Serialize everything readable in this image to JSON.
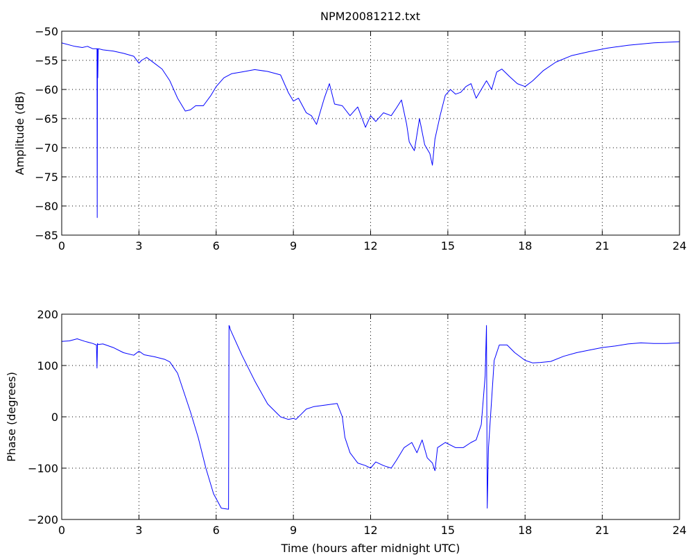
{
  "figure": {
    "title": "NPM20081212.txt"
  },
  "chart_data": [
    {
      "type": "line",
      "title": "NPM20081212.txt",
      "xlabel": "",
      "ylabel": "Amplitude (dB)",
      "xlim": [
        0,
        24
      ],
      "ylim": [
        -85,
        -50
      ],
      "xticks": [
        0,
        3,
        6,
        9,
        12,
        15,
        18,
        21,
        24
      ],
      "yticks": [
        -85,
        -80,
        -75,
        -70,
        -65,
        -60,
        -55,
        -50
      ],
      "grid": true,
      "series": [
        {
          "color": "#0000ff",
          "x": [
            0,
            0.5,
            0.8,
            1.0,
            1.2,
            1.37,
            1.38,
            1.39,
            1.4,
            1.42,
            1.6,
            2.0,
            2.4,
            2.8,
            3.0,
            3.1,
            3.3,
            3.6,
            3.9,
            4.2,
            4.5,
            4.8,
            5.0,
            5.2,
            5.5,
            5.8,
            6.0,
            6.3,
            6.6,
            7.0,
            7.5,
            8.0,
            8.5,
            8.8,
            9.0,
            9.2,
            9.5,
            9.7,
            9.9,
            10.2,
            10.4,
            10.6,
            10.9,
            11.2,
            11.5,
            11.8,
            12.0,
            12.2,
            12.5,
            12.8,
            13.0,
            13.2,
            13.4,
            13.5,
            13.7,
            13.9,
            14.1,
            14.3,
            14.4,
            14.5,
            14.7,
            14.9,
            15.1,
            15.3,
            15.5,
            15.7,
            15.9,
            16.1,
            16.3,
            16.5,
            16.7,
            16.9,
            17.1,
            17.4,
            17.7,
            18.0,
            18.3,
            18.7,
            19.2,
            19.8,
            20.5,
            21.2,
            22.0,
            23.0,
            24.0
          ],
          "y": [
            -52.0,
            -52.6,
            -52.8,
            -52.6,
            -53.0,
            -53.0,
            -82.0,
            -53.0,
            -58.0,
            -53.0,
            -53.2,
            -53.4,
            -53.8,
            -54.3,
            -55.5,
            -55.0,
            -54.5,
            -55.5,
            -56.5,
            -58.5,
            -61.5,
            -63.7,
            -63.5,
            -62.8,
            -62.8,
            -61.0,
            -59.5,
            -58.0,
            -57.3,
            -57.0,
            -56.6,
            -56.9,
            -57.5,
            -60.5,
            -62.0,
            -61.5,
            -64.0,
            -64.5,
            -66.0,
            -61.5,
            -59.0,
            -62.5,
            -62.8,
            -64.5,
            -63.0,
            -66.5,
            -64.5,
            -65.5,
            -64.0,
            -64.5,
            -63.2,
            -61.8,
            -66.0,
            -69.0,
            -70.5,
            -65.0,
            -69.5,
            -71.0,
            -73.0,
            -68.5,
            -64.5,
            -61.0,
            -60.0,
            -60.8,
            -60.5,
            -59.5,
            -59.0,
            -61.5,
            -60.0,
            -58.5,
            -60.0,
            -57.0,
            -56.5,
            -57.8,
            -59.0,
            -59.5,
            -58.5,
            -56.8,
            -55.3,
            -54.2,
            -53.5,
            -52.9,
            -52.4,
            -52.0,
            -51.8
          ]
        }
      ]
    },
    {
      "type": "line",
      "title": "",
      "xlabel": "Time (hours after midnight UTC)",
      "ylabel": "Phase (degrees)",
      "xlim": [
        0,
        24
      ],
      "ylim": [
        -200,
        200
      ],
      "xticks": [
        0,
        3,
        6,
        9,
        12,
        15,
        18,
        21,
        24
      ],
      "yticks": [
        -200,
        -100,
        0,
        100,
        200
      ],
      "grid": true,
      "series": [
        {
          "color": "#0000ff",
          "x": [
            0,
            0.3,
            0.6,
            0.9,
            1.2,
            1.35,
            1.37,
            1.39,
            1.41,
            1.6,
            2.0,
            2.4,
            2.8,
            3.0,
            3.2,
            3.6,
            4.0,
            4.2,
            4.5,
            4.8,
            5.0,
            5.3,
            5.6,
            5.9,
            6.2,
            6.48,
            6.5,
            6.52,
            6.55,
            7.0,
            7.5,
            8.0,
            8.5,
            8.8,
            9.0,
            9.1,
            9.3,
            9.5,
            9.8,
            10.1,
            10.4,
            10.7,
            10.9,
            11.0,
            11.2,
            11.5,
            11.8,
            12.0,
            12.2,
            12.5,
            12.8,
            13.0,
            13.3,
            13.6,
            13.8,
            14.0,
            14.2,
            14.4,
            14.5,
            14.6,
            14.9,
            15.3,
            15.6,
            15.9,
            16.1,
            16.3,
            16.45,
            16.5,
            16.53,
            16.58,
            16.8,
            17.0,
            17.3,
            17.6,
            18.0,
            18.3,
            18.6,
            19.0,
            19.5,
            20.0,
            20.5,
            21.0,
            21.5,
            22.0,
            22.5,
            23.0,
            23.5,
            24.0
          ],
          "y": [
            147,
            148,
            152,
            147,
            143,
            140,
            95,
            143,
            141,
            142,
            135,
            125,
            120,
            128,
            121,
            117,
            112,
            107,
            85,
            40,
            10,
            -40,
            -100,
            -150,
            -178,
            -180,
            178,
            176,
            170,
            120,
            70,
            25,
            0,
            -5,
            -3,
            -5,
            5,
            15,
            20,
            22,
            24,
            26,
            0,
            -40,
            -70,
            -90,
            -95,
            -100,
            -88,
            -95,
            -100,
            -85,
            -60,
            -50,
            -70,
            -45,
            -80,
            -90,
            -105,
            -60,
            -50,
            -60,
            -60,
            -50,
            -45,
            -15,
            80,
            178,
            -178,
            -60,
            110,
            140,
            140,
            125,
            110,
            105,
            106,
            108,
            118,
            125,
            130,
            135,
            138,
            142,
            144,
            143,
            143,
            144
          ]
        }
      ]
    }
  ]
}
